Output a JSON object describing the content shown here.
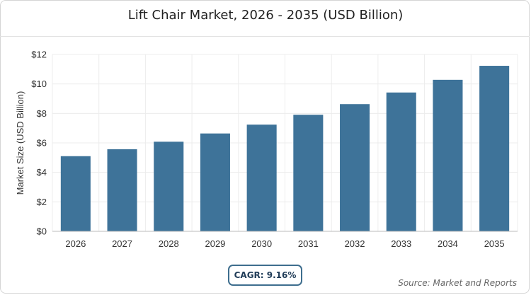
{
  "chart_data": {
    "type": "bar",
    "title": "Lift Chair Market, 2026 - 2035 (USD Billion)",
    "ylabel": "Market Size (USD Billion)",
    "xlabel": "",
    "categories": [
      "2026",
      "2027",
      "2028",
      "2029",
      "2030",
      "2031",
      "2032",
      "2033",
      "2034",
      "2035"
    ],
    "values": [
      5.1,
      5.57,
      6.08,
      6.64,
      7.24,
      7.91,
      8.63,
      9.42,
      10.28,
      11.23
    ],
    "ylim": [
      0,
      12
    ],
    "yticks": [
      0,
      2,
      4,
      6,
      8,
      10,
      12
    ],
    "ytick_labels": [
      "$0",
      "$2",
      "$4",
      "$6",
      "$8",
      "$10",
      "$12"
    ],
    "grid": true,
    "bar_color": "#3e7399"
  },
  "annotations": {
    "cagr": "CAGR: 9.16%",
    "source": "Source: Market and Reports"
  }
}
